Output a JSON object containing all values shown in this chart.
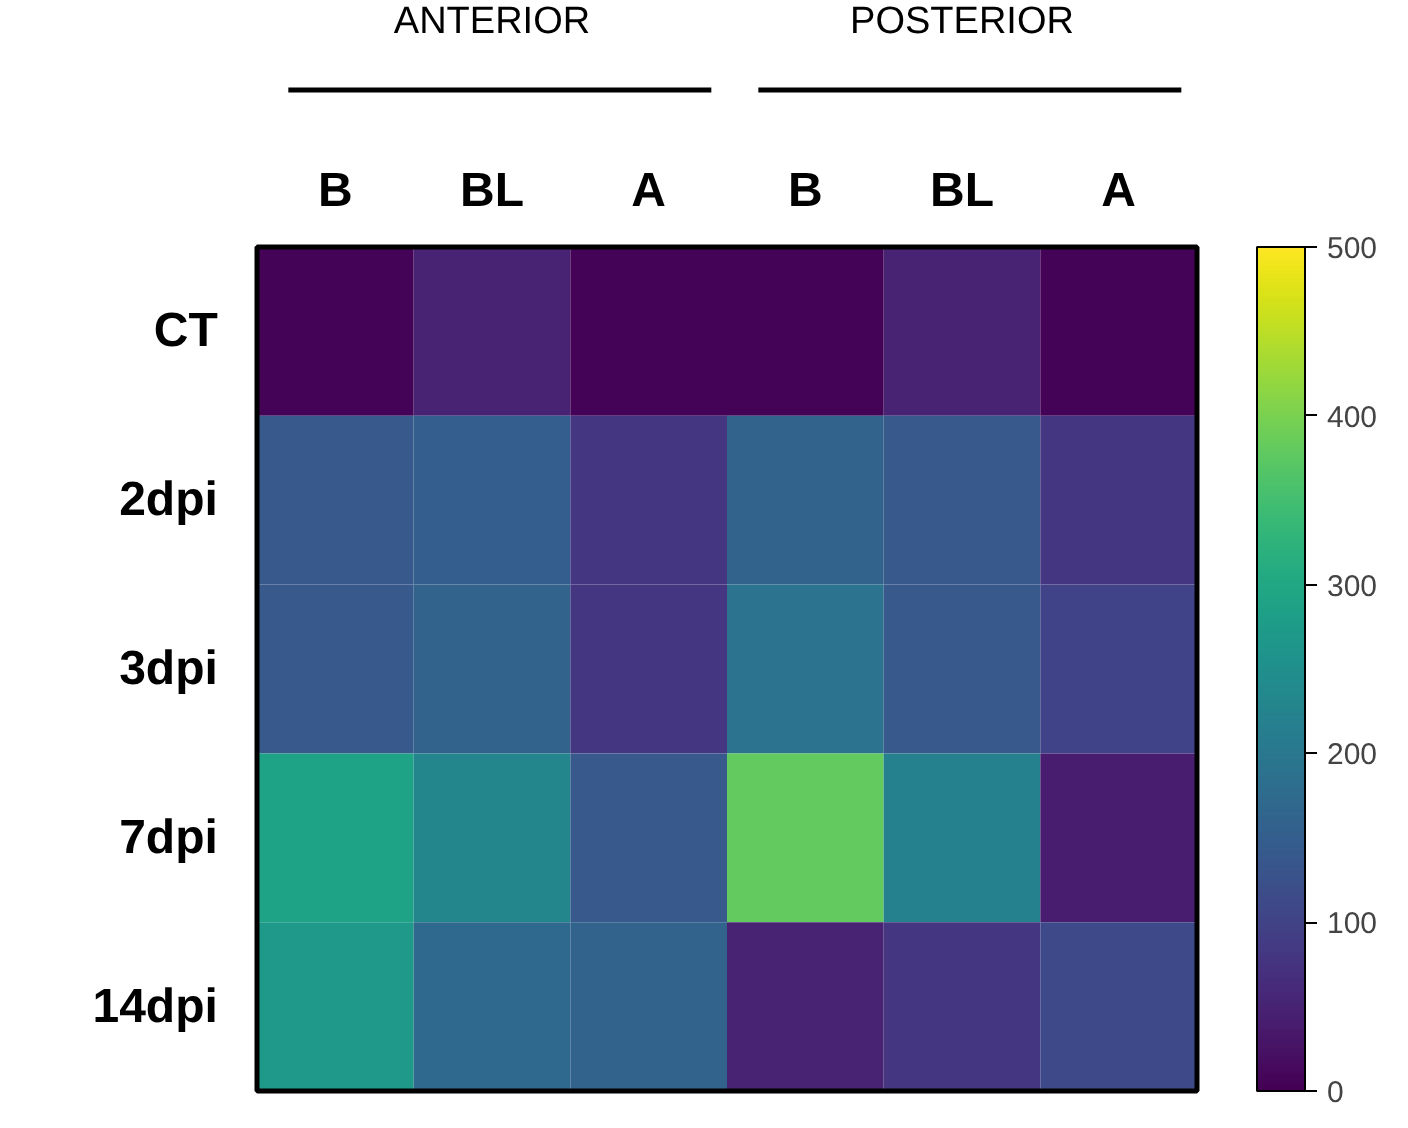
{
  "chart_data": {
    "type": "heatmap",
    "categories": [
      "B",
      "BL",
      "A",
      "B",
      "BL",
      "A"
    ],
    "y_categories": [
      "CT",
      "2dpi",
      "3dpi",
      "7dpi",
      "14dpi"
    ],
    "cells": [
      [
        5,
        50,
        5,
        5,
        50,
        5
      ],
      [
        140,
        150,
        80,
        160,
        140,
        80
      ],
      [
        140,
        160,
        80,
        190,
        140,
        100
      ],
      [
        290,
        230,
        140,
        380,
        220,
        40
      ],
      [
        270,
        170,
        160,
        50,
        80,
        110
      ]
    ],
    "clim": [
      0,
      500
    ],
    "cticks": [
      0,
      100,
      200,
      300,
      400,
      500
    ],
    "annotations": [
      "ANTERIOR",
      "POSTERIOR"
    ]
  }
}
